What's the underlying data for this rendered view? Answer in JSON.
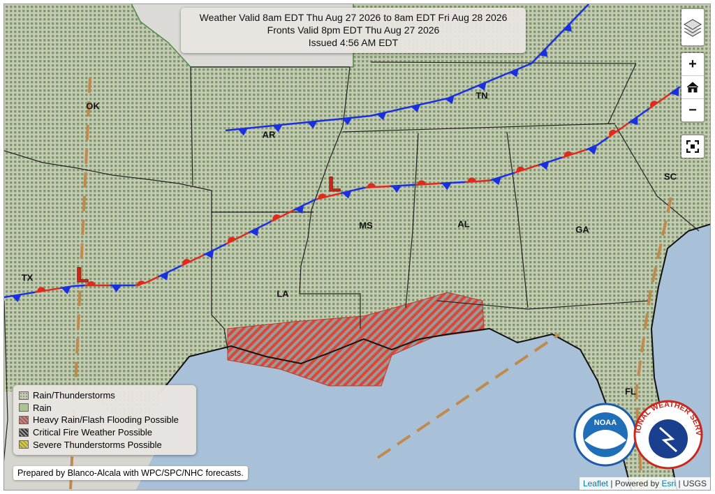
{
  "header": {
    "line1": "Weather Valid 8am EDT Thu Aug 27 2026 to 8am EDT Fri Aug 28 2026",
    "line2": "Fronts Valid 8pm EDT Thu Aug 27 2026",
    "line3": "Issued 4:56 AM EDT"
  },
  "states": {
    "ok": "OK",
    "ar": "AR",
    "tn": "TN",
    "tx": "TX",
    "la": "LA",
    "ms": "MS",
    "al": "AL",
    "ga": "GA",
    "sc": "SC",
    "fl": "FL"
  },
  "low_symbol": "L",
  "legend": {
    "items": [
      "Rain/Thunderstorms",
      "Rain",
      "Heavy Rain/Flash Flooding Possible",
      "Critical Fire Weather Possible",
      "Severe Thunderstorms Possible"
    ]
  },
  "credit": "Prepared by Blanco-Alcala with WPC/SPC/NHC forecasts.",
  "controls": {
    "zoom_in": "+",
    "zoom_out": "−"
  },
  "attribution": {
    "leaflet": "Leaflet",
    "separator": "|",
    "powered_by": "Powered by",
    "esri": "Esri",
    "usgs": "USGS"
  },
  "logos": {
    "noaa": "NOAA",
    "nws": "NATIONAL WEATHER SERVICE"
  }
}
